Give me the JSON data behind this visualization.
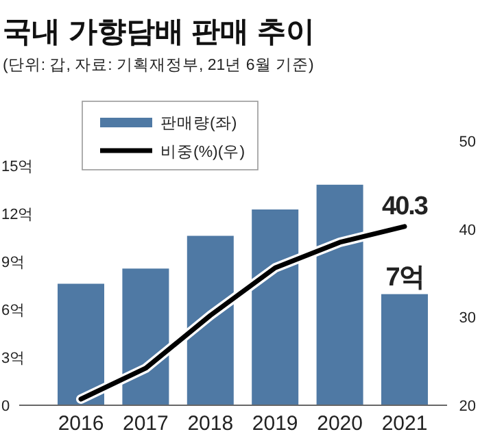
{
  "chart_data": {
    "type": "bar",
    "title": "국내 가향담배 판매 추이",
    "subtitle": "(단위: 갑, 자료: 기획재정부, 21년 6월 기준)",
    "categories": [
      "2016",
      "2017",
      "2018",
      "2019",
      "2020",
      "2021"
    ],
    "series": [
      {
        "name": "판매량(좌)",
        "color": "#4f79a4",
        "values": [
          7.65,
          8.6,
          10.65,
          12.3,
          13.85,
          7
        ],
        "value_labels": [
          null,
          null,
          null,
          null,
          null,
          "7억"
        ]
      },
      {
        "name": "비중(%)(우)",
        "type": "line",
        "axis": "y2",
        "color": "#000000",
        "values": [
          20.7,
          24.2,
          30.2,
          35.6,
          38.5,
          40.3
        ],
        "value_labels": [
          null,
          null,
          null,
          null,
          null,
          "40.3"
        ]
      }
    ],
    "ylim": [
      0,
      15
    ],
    "yticks": [
      0,
      {
        "value": 3,
        "label": "3억"
      },
      {
        "value": 6,
        "label": "6억"
      },
      {
        "value": 9,
        "label": "9억"
      },
      {
        "value": 12,
        "label": "12억"
      },
      {
        "value": 15,
        "label": "15억"
      }
    ],
    "y2lim": [
      20,
      50
    ],
    "y2ticks": [
      20,
      30,
      40,
      50
    ],
    "legend": "top left",
    "grid": false
  }
}
